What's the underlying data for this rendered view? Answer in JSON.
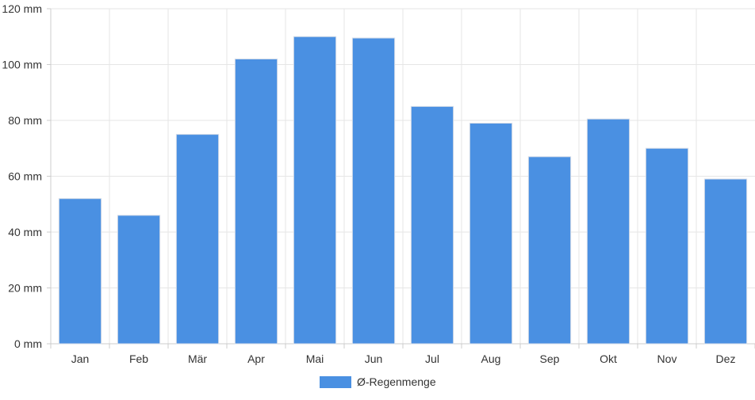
{
  "chart_data": {
    "type": "bar",
    "categories": [
      "Jan",
      "Feb",
      "Mär",
      "Apr",
      "Mai",
      "Jun",
      "Jul",
      "Aug",
      "Sep",
      "Okt",
      "Nov",
      "Dez"
    ],
    "series": [
      {
        "name": "Ø-Regenmenge",
        "values": [
          52,
          46,
          75,
          102,
          110,
          109.5,
          85,
          79,
          67,
          80.5,
          70,
          59
        ],
        "color": "#4a90e2"
      }
    ],
    "y_unit": "mm",
    "ylim": [
      0,
      120
    ],
    "y_ticks": [
      0,
      20,
      40,
      60,
      80,
      100,
      120
    ],
    "grid": true,
    "legend_position": "bottom"
  }
}
